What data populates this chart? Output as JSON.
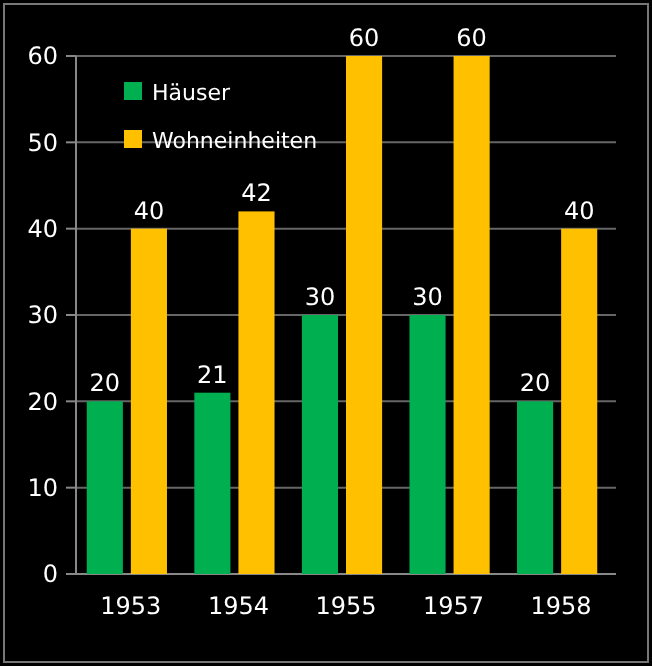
{
  "chart_data": {
    "type": "bar",
    "categories": [
      "1953",
      "1954",
      "1955",
      "1957",
      "1958"
    ],
    "series": [
      {
        "name": "Häuser",
        "color": "#00b050",
        "values": [
          20,
          21,
          30,
          30,
          20
        ]
      },
      {
        "name": "Wohneinheiten",
        "color": "#ffc000",
        "values": [
          40,
          42,
          60,
          60,
          40
        ]
      }
    ],
    "ylim": [
      0,
      60
    ],
    "yticks": [
      0,
      10,
      20,
      30,
      40,
      50,
      60
    ],
    "grid": "y",
    "legend": "top left",
    "data_labels": true
  }
}
